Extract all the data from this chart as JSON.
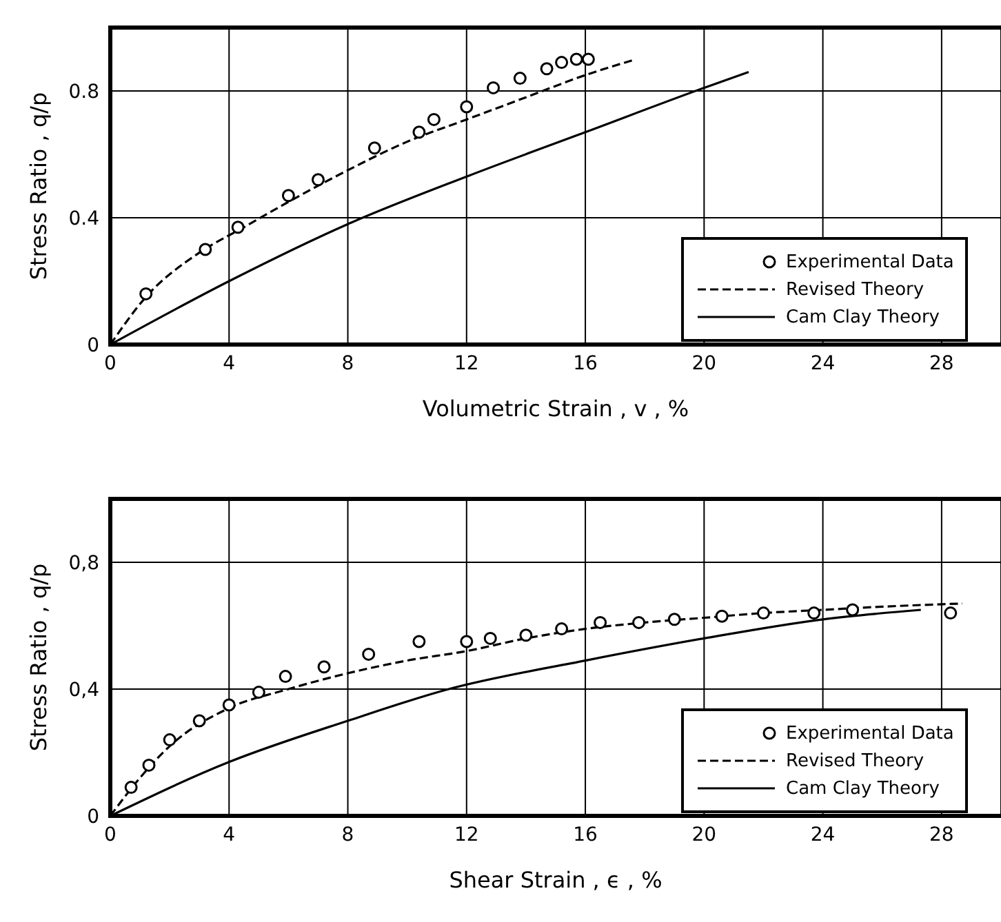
{
  "chart_data": [
    {
      "type": "scatter",
      "xlabel": "Volumetric Strain , v , %",
      "ylabel": "Stress Ratio  ,  q/p",
      "xlim": [
        0,
        30
      ],
      "ylim": [
        0,
        1
      ],
      "xticks": [
        0,
        4,
        8,
        12,
        16,
        20,
        24,
        28
      ],
      "yticks": [
        0,
        0.4,
        0.8
      ],
      "grid": true,
      "legend": "bottom right",
      "series": [
        {
          "name": "Experimental Data",
          "type": "scatter",
          "marker": "circle",
          "color": "#000000",
          "x": [
            1.2,
            3.2,
            4.3,
            6.0,
            7.0,
            8.9,
            10.4,
            10.9,
            12.0,
            12.9,
            13.8,
            14.7,
            15.2,
            15.7,
            16.1
          ],
          "values": [
            0.16,
            0.3,
            0.37,
            0.47,
            0.52,
            0.62,
            0.67,
            0.71,
            0.75,
            0.81,
            0.84,
            0.87,
            0.89,
            0.9,
            0.9
          ]
        },
        {
          "name": "Revised Theory",
          "type": "line",
          "line_style": "dashed",
          "marker": "none",
          "color": "#000000",
          "x": [
            0,
            1.2,
            3,
            4.5,
            6,
            8,
            10,
            12,
            14,
            16,
            17.7
          ],
          "values": [
            0,
            0.15,
            0.29,
            0.37,
            0.45,
            0.55,
            0.64,
            0.71,
            0.78,
            0.85,
            0.9
          ]
        },
        {
          "name": "Cam Clay Theory",
          "type": "line",
          "line_style": "solid",
          "marker": "none",
          "color": "#000000",
          "x": [
            0,
            4,
            8,
            12,
            16,
            20,
            21.5
          ],
          "values": [
            0,
            0.2,
            0.38,
            0.53,
            0.67,
            0.81,
            0.86
          ]
        }
      ]
    },
    {
      "type": "scatter",
      "xlabel": "Shear Strain , ϵ , %",
      "ylabel": "Stress Ratio  ,  q/p",
      "xlim": [
        0,
        30
      ],
      "ylim": [
        0,
        1
      ],
      "xticks": [
        0,
        4,
        8,
        12,
        16,
        20,
        24,
        28
      ],
      "yticks": [
        0,
        {
          "value": 0.4,
          "label": "0,4"
        },
        {
          "value": 0.8,
          "label": "0,8"
        }
      ],
      "grid": true,
      "legend": "bottom right",
      "series": [
        {
          "name": "Experimental Data",
          "type": "scatter",
          "marker": "circle",
          "color": "#000000",
          "x": [
            0.7,
            1.3,
            2.0,
            3.0,
            4.0,
            5.0,
            5.9,
            7.2,
            8.7,
            10.4,
            12.0,
            12.8,
            14.0,
            15.2,
            16.5,
            17.8,
            19.0,
            20.6,
            22.0,
            23.7,
            25.0,
            28.3
          ],
          "values": [
            0.09,
            0.16,
            0.24,
            0.3,
            0.35,
            0.39,
            0.44,
            0.47,
            0.51,
            0.55,
            0.55,
            0.56,
            0.57,
            0.59,
            0.61,
            0.61,
            0.62,
            0.63,
            0.64,
            0.64,
            0.65,
            0.64
          ]
        },
        {
          "name": "Revised Theory",
          "type": "line",
          "line_style": "dashed",
          "marker": "none",
          "color": "#000000",
          "x": [
            0,
            1,
            2,
            4,
            6,
            8,
            10,
            12,
            14,
            16,
            18,
            20,
            22,
            24,
            26,
            28.7
          ],
          "values": [
            0,
            0.12,
            0.22,
            0.34,
            0.4,
            0.45,
            0.49,
            0.52,
            0.56,
            0.59,
            0.61,
            0.625,
            0.64,
            0.65,
            0.66,
            0.67
          ]
        },
        {
          "name": "Cam Clay Theory",
          "type": "line",
          "line_style": "solid",
          "marker": "none",
          "color": "#000000",
          "x": [
            0,
            4,
            8,
            11.4,
            16,
            20,
            24,
            27.3
          ],
          "values": [
            0,
            0.17,
            0.3,
            0.4,
            0.49,
            0.56,
            0.62,
            0.65
          ]
        }
      ]
    }
  ]
}
